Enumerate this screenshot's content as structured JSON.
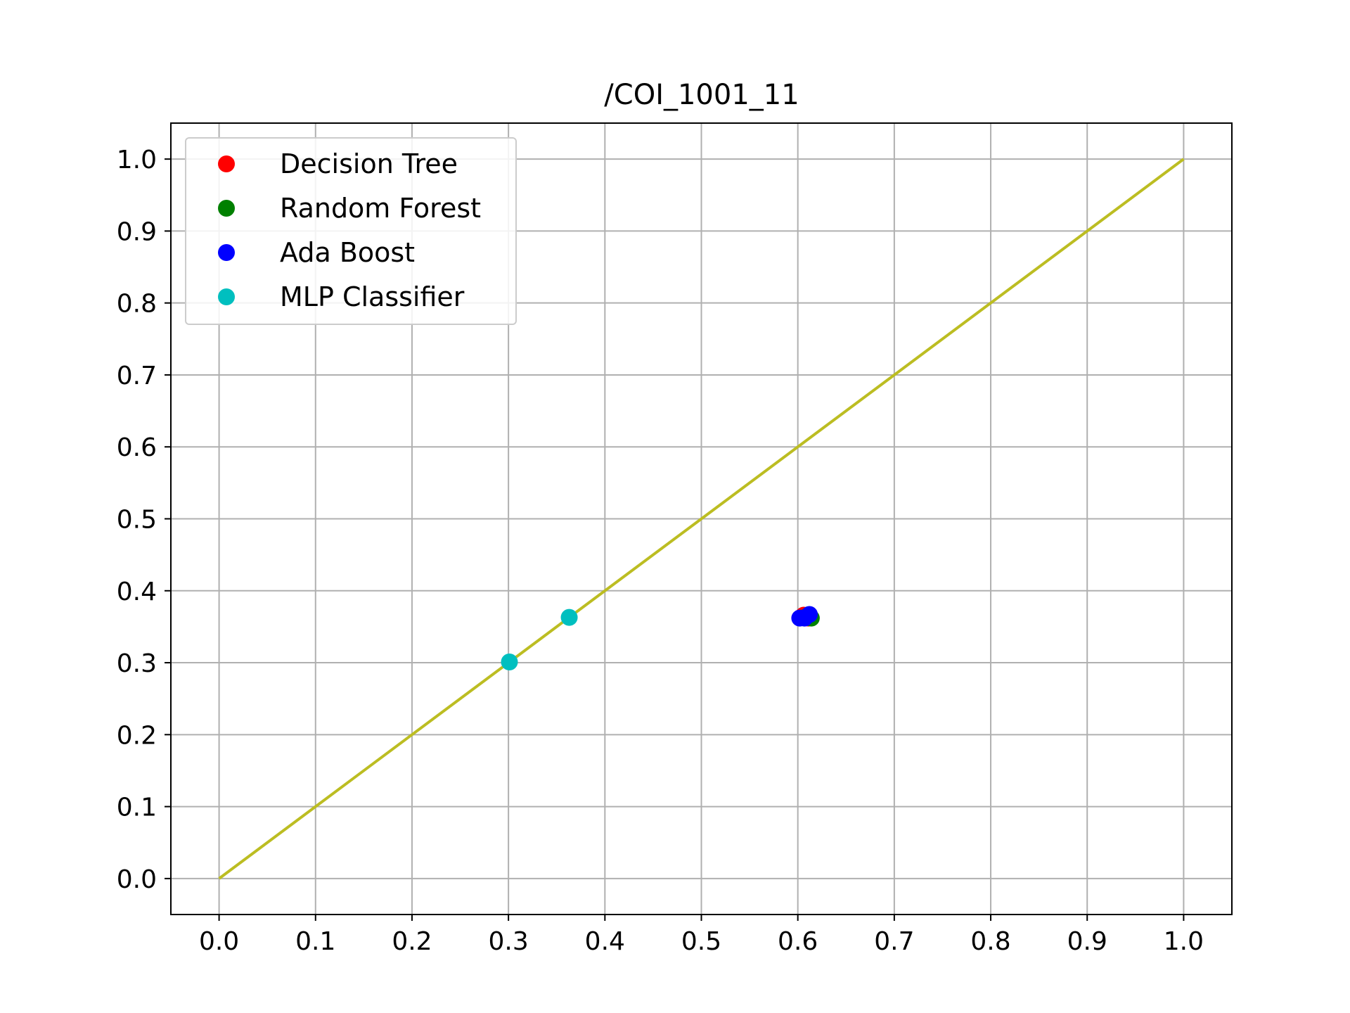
{
  "chart_data": {
    "type": "scatter",
    "title": "/COI_1001_11",
    "xlabel": "",
    "ylabel": "",
    "xlim": [
      -0.05,
      1.05
    ],
    "ylim": [
      -0.05,
      1.05
    ],
    "x_ticks": [
      "0.0",
      "0.1",
      "0.2",
      "0.3",
      "0.4",
      "0.5",
      "0.6",
      "0.7",
      "0.8",
      "0.9",
      "1.0"
    ],
    "y_ticks": [
      "0.0",
      "0.1",
      "0.2",
      "0.3",
      "0.4",
      "0.5",
      "0.6",
      "0.7",
      "0.8",
      "0.9",
      "1.0"
    ],
    "grid": true,
    "legend_position": "upper-left",
    "reference_line": {
      "x": [
        0.0,
        1.0
      ],
      "y": [
        0.0,
        1.0
      ],
      "color": "#bcbd22"
    },
    "series": [
      {
        "name": "Decision Tree",
        "color": "#ff0000",
        "points": [
          [
            0.606,
            0.366
          ],
          [
            0.611,
            0.362
          ]
        ]
      },
      {
        "name": "Random Forest",
        "color": "#008000",
        "points": [
          [
            0.614,
            0.362
          ],
          [
            0.609,
            0.364
          ]
        ]
      },
      {
        "name": "Ada Boost",
        "color": "#0000ff",
        "points": [
          [
            0.602,
            0.362
          ],
          [
            0.612,
            0.367
          ],
          [
            0.607,
            0.362
          ]
        ]
      },
      {
        "name": "MLP Classifier",
        "color": "#00bfbf",
        "points": [
          [
            0.301,
            0.301
          ],
          [
            0.363,
            0.363
          ]
        ]
      }
    ]
  }
}
